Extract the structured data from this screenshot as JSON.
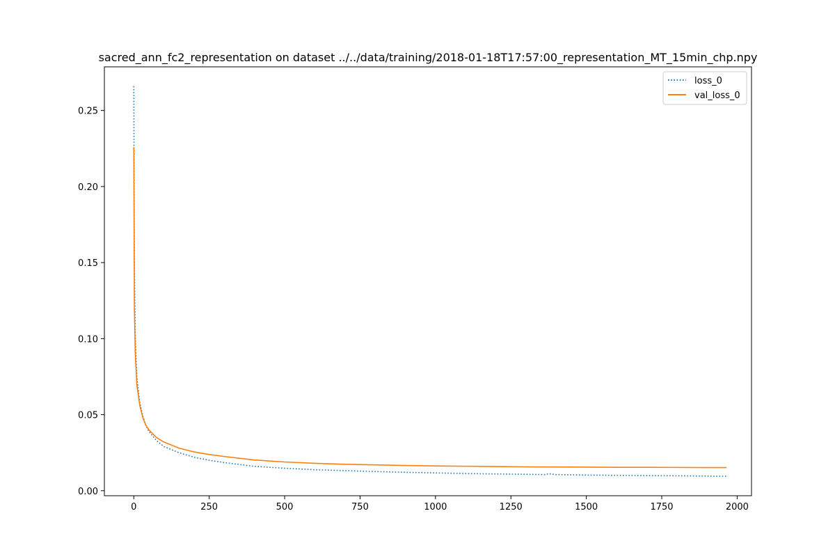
{
  "chart_data": {
    "type": "line",
    "title": "sacred_ann_fc2_representation on dataset ../../data/training/2018-01-18T17:57:00_representation_MT_15min_chp.npy",
    "xlabel": "",
    "ylabel": "",
    "xlim": [
      -97.5,
      2047.5
    ],
    "ylim": [
      -0.0033,
      0.2787
    ],
    "x_ticks": [
      0,
      250,
      500,
      750,
      1000,
      1250,
      1500,
      1750,
      2000
    ],
    "x_tick_labels": [
      "0",
      "250",
      "500",
      "750",
      "1000",
      "1250",
      "1500",
      "1750",
      "2000"
    ],
    "y_ticks": [
      0.0,
      0.05,
      0.1,
      0.15,
      0.2,
      0.25
    ],
    "y_tick_labels": [
      "0.00",
      "0.05",
      "0.10",
      "0.15",
      "0.20",
      "0.25"
    ],
    "grid": false,
    "legend_position": "upper right",
    "series": [
      {
        "name": "loss_0",
        "color": "#1f77b4",
        "style": "dotted",
        "x": [
          0,
          2,
          5,
          10,
          20,
          30,
          40,
          50,
          75,
          100,
          150,
          200,
          250,
          300,
          400,
          500,
          600,
          700,
          800,
          900,
          1000,
          1100,
          1200,
          1300,
          1365,
          1375,
          1400,
          1500,
          1600,
          1700,
          1800,
          1900,
          1965
        ],
        "y": [
          0.266,
          0.15,
          0.1,
          0.075,
          0.058,
          0.049,
          0.043,
          0.039,
          0.033,
          0.029,
          0.025,
          0.022,
          0.02,
          0.0185,
          0.016,
          0.0148,
          0.0138,
          0.0132,
          0.0126,
          0.0121,
          0.0117,
          0.0113,
          0.011,
          0.0108,
          0.0106,
          0.0112,
          0.0106,
          0.0103,
          0.0101,
          0.0099,
          0.0098,
          0.0096,
          0.0095
        ]
      },
      {
        "name": "val_loss_0",
        "color": "#ff7f0e",
        "style": "solid",
        "x": [
          0,
          2,
          5,
          10,
          20,
          30,
          40,
          50,
          75,
          100,
          150,
          200,
          250,
          300,
          400,
          500,
          600,
          700,
          800,
          900,
          1000,
          1100,
          1200,
          1300,
          1400,
          1500,
          1600,
          1700,
          1800,
          1900,
          1965
        ],
        "y": [
          0.226,
          0.12,
          0.09,
          0.07,
          0.056,
          0.048,
          0.043,
          0.04,
          0.035,
          0.032,
          0.028,
          0.0255,
          0.0238,
          0.0225,
          0.0202,
          0.0189,
          0.018,
          0.0174,
          0.017,
          0.0166,
          0.0163,
          0.0161,
          0.0159,
          0.0157,
          0.0156,
          0.0155,
          0.0154,
          0.0154,
          0.0153,
          0.0152,
          0.0152
        ]
      }
    ]
  }
}
